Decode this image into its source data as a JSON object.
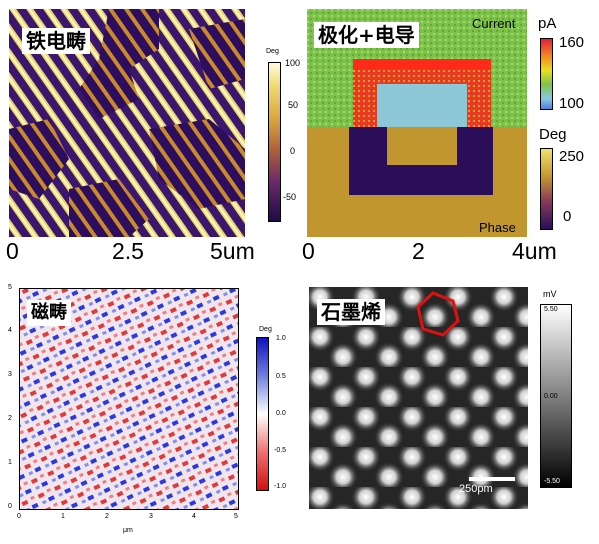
{
  "panels": {
    "ferro": {
      "label": "铁电畴",
      "colorbar": {
        "unit": "Deg",
        "ticks": [
          "100",
          "50",
          "0",
          "-50"
        ]
      },
      "xaxis": [
        "0",
        "2.5",
        "5um"
      ]
    },
    "poling": {
      "label": "极化+电导",
      "current_label": "Current",
      "phase_label": "Phase",
      "current_bar": {
        "unit": "pA",
        "ticks": [
          "160",
          "100"
        ]
      },
      "phase_bar": {
        "unit": "Deg",
        "ticks": [
          "250",
          "0"
        ]
      },
      "xaxis": [
        "0",
        "2",
        "4um"
      ]
    },
    "magnetic": {
      "label": "磁畴",
      "yaxis": [
        "5",
        "4",
        "3",
        "2",
        "1",
        "0"
      ],
      "xaxis": [
        "0",
        "1",
        "2",
        "3",
        "4",
        "5"
      ],
      "xlabel": "μm",
      "colorbar": {
        "unit": "Deg",
        "ticks": [
          "1.0",
          "0.5",
          "0.0",
          "-0.5",
          "-1.0"
        ]
      }
    },
    "graphene": {
      "label": "石墨烯",
      "scalebar": "250pm",
      "colorbar": {
        "unit": "mV",
        "ticks": [
          "5.50",
          "0.00",
          "-5.50"
        ]
      }
    }
  }
}
